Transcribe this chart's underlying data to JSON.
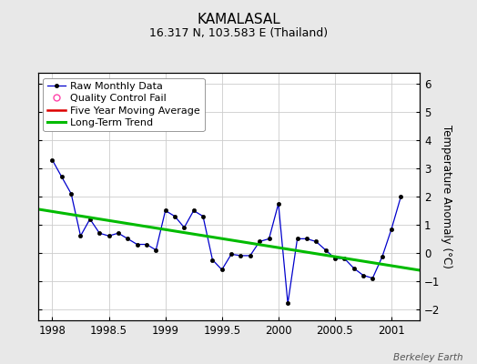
{
  "title": "KAMALASAL",
  "subtitle": "16.317 N, 103.583 E (Thailand)",
  "watermark": "Berkeley Earth",
  "ylabel": "Temperature Anomaly (°C)",
  "background_color": "#e8e8e8",
  "plot_bg_color": "#ffffff",
  "xlim": [
    1997.875,
    2001.25
  ],
  "ylim": [
    -2.4,
    6.4
  ],
  "yticks": [
    -2,
    -1,
    0,
    1,
    2,
    3,
    4,
    5,
    6
  ],
  "xticks": [
    1998,
    1998.5,
    1999,
    1999.5,
    2000,
    2000.5,
    2001
  ],
  "raw_x": [
    1998.0,
    1998.083,
    1998.167,
    1998.25,
    1998.333,
    1998.417,
    1998.5,
    1998.583,
    1998.667,
    1998.75,
    1998.833,
    1998.917,
    1999.0,
    1999.083,
    1999.167,
    1999.25,
    1999.333,
    1999.417,
    1999.5,
    1999.583,
    1999.667,
    1999.75,
    1999.833,
    1999.917,
    2000.0,
    2000.083,
    2000.167,
    2000.25,
    2000.333,
    2000.417,
    2000.5,
    2000.583,
    2000.667,
    2000.75,
    2000.833,
    2000.917,
    2001.0,
    2001.083
  ],
  "raw_y": [
    3.3,
    2.7,
    2.1,
    0.6,
    1.2,
    0.7,
    0.6,
    0.7,
    0.5,
    0.3,
    0.3,
    0.1,
    1.5,
    1.3,
    0.9,
    1.5,
    1.3,
    -0.25,
    -0.6,
    -0.05,
    -0.1,
    -0.1,
    0.4,
    0.5,
    1.75,
    -1.8,
    0.5,
    0.5,
    0.4,
    0.1,
    -0.2,
    -0.2,
    -0.55,
    -0.8,
    -0.9,
    -0.15,
    0.85,
    2.0
  ],
  "trend_x": [
    1997.875,
    2001.25
  ],
  "trend_y": [
    1.55,
    -0.62
  ],
  "raw_color": "#0000cc",
  "raw_marker_color": "#000000",
  "trend_color": "#00bb00",
  "moving_avg_color": "#dd0000",
  "grid_color": "#cccccc",
  "title_fontsize": 11,
  "subtitle_fontsize": 9,
  "tick_fontsize": 8.5,
  "legend_fontsize": 8,
  "ylabel_fontsize": 8.5
}
